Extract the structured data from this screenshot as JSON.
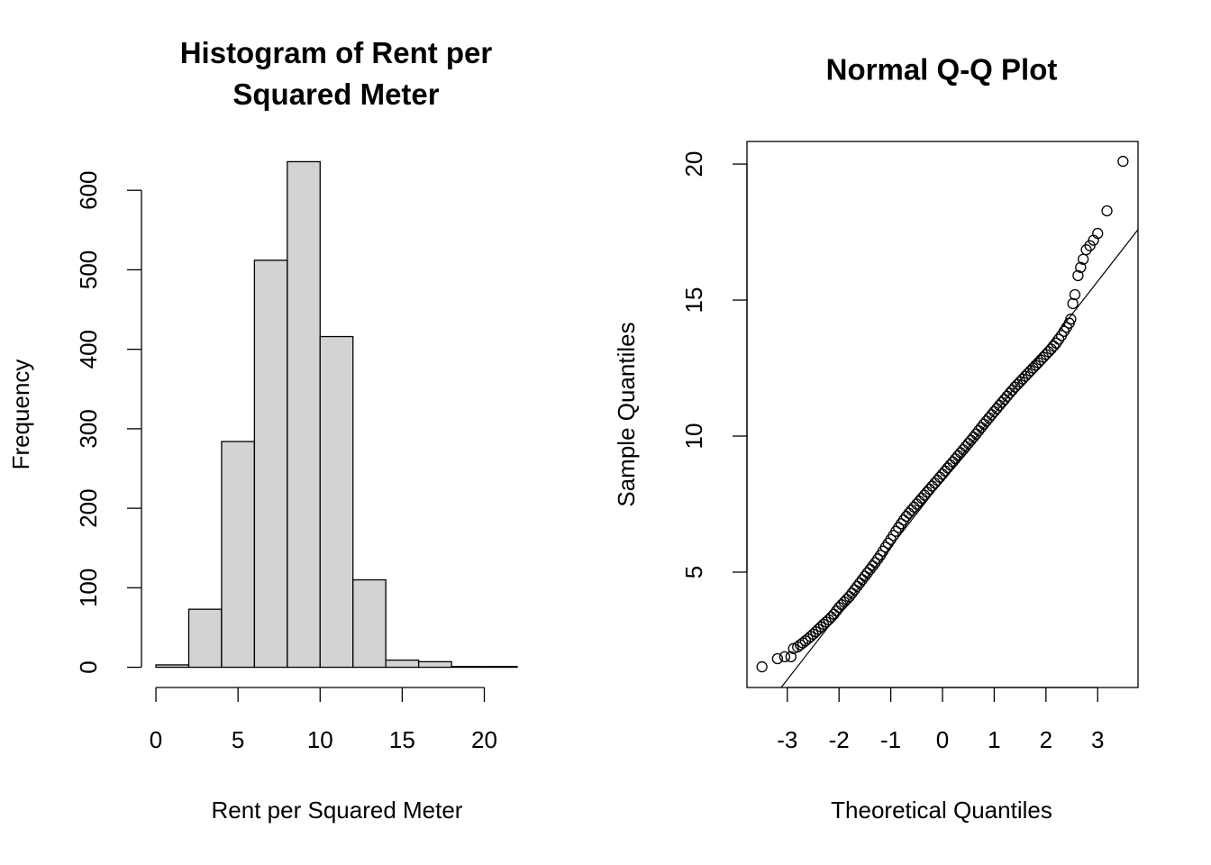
{
  "chart_data": [
    {
      "type": "histogram",
      "title": "Histogram of Rent per Squared Meter",
      "xlabel": "Rent per Squared Meter",
      "ylabel": "Frequency",
      "bins": [
        0,
        2,
        4,
        6,
        8,
        10,
        12,
        14,
        16,
        18,
        20,
        22
      ],
      "values": [
        3,
        73,
        284,
        512,
        636,
        416,
        110,
        9,
        7,
        1,
        1
      ],
      "color": "#d3d3d3",
      "xlim": [
        -0.88,
        22.88
      ],
      "ylim": [
        -25.44,
        661.44
      ],
      "xticks": [
        0,
        5,
        10,
        15,
        20
      ],
      "yticks": [
        0,
        100,
        200,
        300,
        400,
        500,
        600
      ]
    },
    {
      "type": "qq",
      "title": "Normal Q-Q Plot",
      "xlabel": "Theoretical Quantiles",
      "ylabel": "Sample Quantiles",
      "x": [
        -3.49,
        -3.19,
        -3.05,
        -2.93,
        -2.88,
        -2.8,
        -2.75,
        -2.7,
        -2.65,
        -2.6,
        -2.55,
        -2.5,
        -2.45,
        -2.4,
        -2.35,
        -2.3,
        -2.25,
        -2.2,
        -2.15,
        -2.1,
        -2.05,
        -2.0,
        -1.95,
        -1.9,
        -1.85,
        -1.8,
        -1.75,
        -1.7,
        -1.65,
        -1.6,
        -1.55,
        -1.5,
        -1.45,
        -1.4,
        -1.35,
        -1.3,
        -1.25,
        -1.2,
        -1.15,
        -1.1,
        -1.05,
        -1.0,
        -0.95,
        -0.9,
        -0.85,
        -0.8,
        -0.75,
        -0.7,
        -0.65,
        -0.6,
        -0.55,
        -0.5,
        -0.45,
        -0.4,
        -0.35,
        -0.3,
        -0.25,
        -0.2,
        -0.15,
        -0.1,
        -0.05,
        0,
        0.05,
        0.1,
        0.15,
        0.2,
        0.25,
        0.3,
        0.35,
        0.4,
        0.45,
        0.5,
        0.55,
        0.6,
        0.65,
        0.7,
        0.75,
        0.8,
        0.85,
        0.9,
        0.95,
        1.0,
        1.05,
        1.1,
        1.15,
        1.2,
        1.25,
        1.3,
        1.35,
        1.4,
        1.45,
        1.5,
        1.55,
        1.6,
        1.65,
        1.7,
        1.75,
        1.8,
        1.85,
        1.9,
        1.95,
        2.0,
        2.05,
        2.1,
        2.15,
        2.2,
        2.25,
        2.3,
        2.35,
        2.4,
        2.45,
        2.48,
        2.52,
        2.56,
        2.62,
        2.67,
        2.72,
        2.78,
        2.85,
        2.92,
        3.0,
        3.18,
        3.49
      ],
      "y": [
        1.52,
        1.82,
        1.89,
        1.89,
        2.19,
        2.25,
        2.33,
        2.4,
        2.475,
        2.55,
        2.635,
        2.72,
        2.81,
        2.9,
        2.99,
        3.08,
        3.165,
        3.25,
        3.35,
        3.45,
        3.575,
        3.7,
        3.8,
        3.9,
        4.0,
        4.1,
        4.225,
        4.35,
        4.475,
        4.6,
        4.725,
        4.85,
        4.975,
        5.1,
        5.225,
        5.35,
        5.485,
        5.62,
        5.77,
        5.92,
        6.06,
        6.2,
        6.35,
        6.5,
        6.64,
        6.78,
        6.915,
        7.05,
        7.165,
        7.28,
        7.39,
        7.5,
        7.61,
        7.72,
        7.83,
        7.94,
        8.05,
        8.16,
        8.27,
        8.38,
        8.49,
        8.6,
        8.715,
        8.83,
        8.94,
        9.05,
        9.165,
        9.28,
        9.39,
        9.5,
        9.615,
        9.73,
        9.845,
        9.96,
        10.08,
        10.2,
        10.32,
        10.44,
        10.555,
        10.67,
        10.785,
        10.9,
        11.015,
        11.13,
        11.24,
        11.35,
        11.465,
        11.58,
        11.69,
        11.8,
        11.9,
        12.0,
        12.1,
        12.2,
        12.3,
        12.4,
        12.5,
        12.6,
        12.7,
        12.8,
        12.9,
        13.0,
        13.1,
        13.2,
        13.31,
        13.42,
        13.56,
        13.7,
        13.85,
        14.0,
        14.15,
        14.3,
        14.87,
        15.2,
        15.9,
        16.2,
        16.5,
        16.85,
        17.0,
        17.2,
        17.45,
        18.28,
        20.1
      ],
      "qqline": {
        "intercept": 8.37,
        "slope": 2.44
      },
      "color": "#000000",
      "xlim": [
        -3.78,
        3.78
      ],
      "ylim": [
        0.76,
        20.83
      ],
      "xticks": [
        -3,
        -2,
        -1,
        0,
        1,
        2,
        3
      ],
      "yticks": [
        5,
        10,
        15,
        20
      ]
    }
  ]
}
